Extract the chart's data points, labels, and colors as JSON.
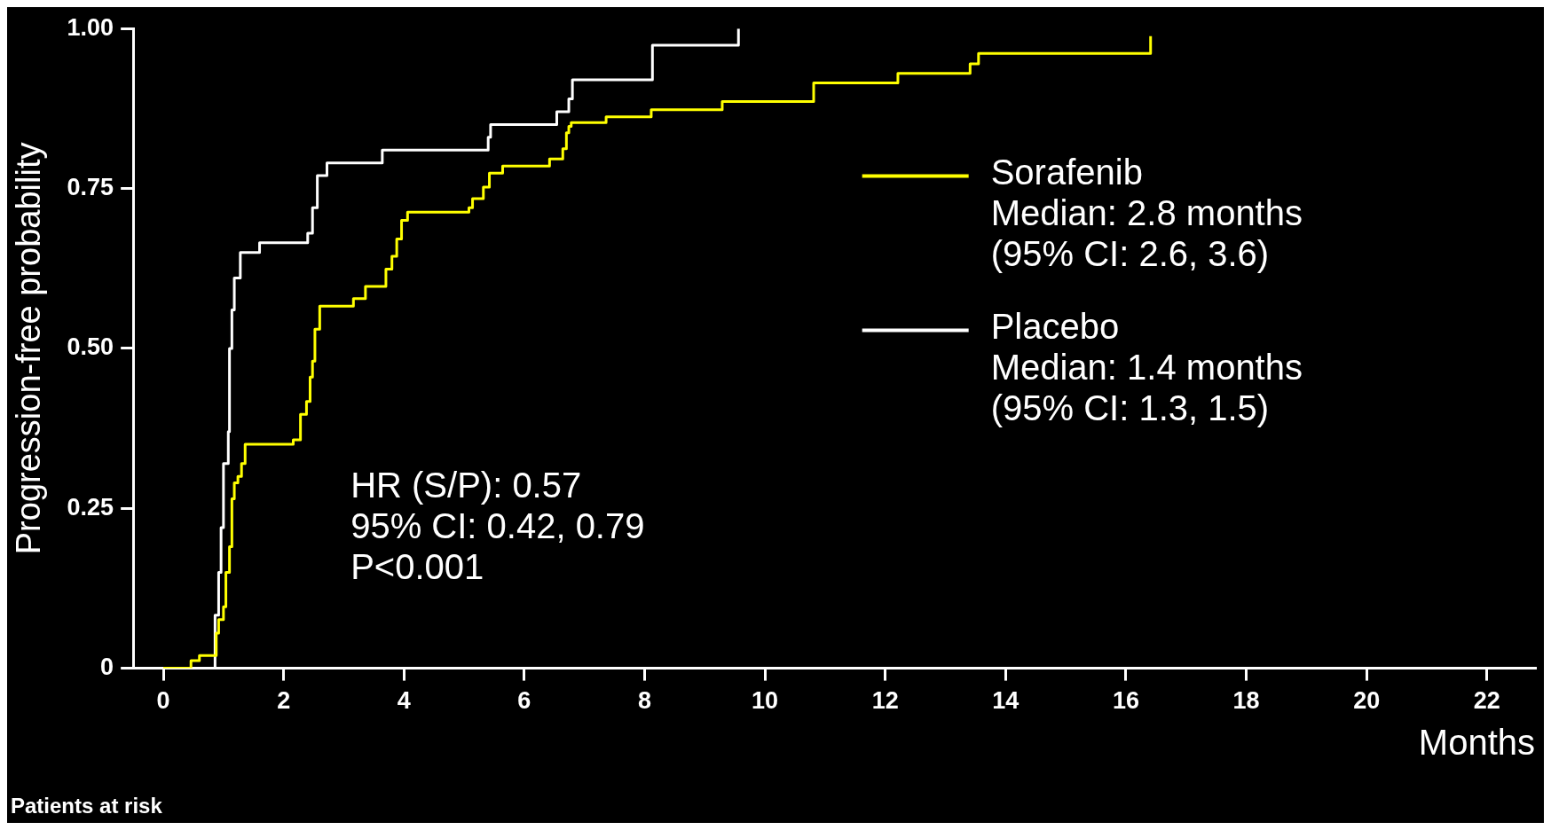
{
  "chart_data": {
    "type": "step",
    "xlabel": "Months",
    "ylabel": "Progression-free probability",
    "xlim": [
      -0.5,
      22.8
    ],
    "ylim": [
      0,
      1
    ],
    "xticks": [
      0,
      2,
      4,
      6,
      8,
      10,
      12,
      14,
      16,
      18,
      20,
      22
    ],
    "yticks": [
      0,
      0.25,
      {
        "value": 0.5,
        "label": "0.50"
      },
      0.75,
      {
        "value": 1,
        "label": "1.00"
      }
    ],
    "grid": false,
    "legend": "right",
    "annotations": [
      "Median: 2.8 months\n(95% CI: 2.6, 3.6)",
      "Median: 1.4 months\n(95% CI: 1.3, 1.5)",
      "HR (S/P): 0.57\n95% CI: 0.42, 0.79\nP<0.001",
      "Patients at risk"
    ],
    "series": [
      {
        "name": "Sorafenib",
        "color": "#ffff00",
        "x": [
          0,
          0.44,
          0.46,
          0.6,
          0.88,
          0.92,
          1.0,
          1.04,
          1.1,
          1.14,
          1.18,
          1.24,
          1.3,
          1.36,
          2.16,
          2.28,
          2.38,
          2.44,
          2.48,
          2.52,
          2.6,
          3.16,
          3.36,
          3.7,
          3.8,
          3.88,
          3.96,
          4.06,
          5.08,
          5.14,
          5.32,
          5.42,
          5.64,
          6.42,
          6.64,
          6.7,
          6.74,
          6.78,
          7.36,
          8.11,
          9.29,
          10.81,
          12.21,
          13.41,
          13.55,
          16.41,
          16.41
        ],
        "values": [
          0,
          0,
          0.012,
          0.02,
          0.055,
          0.076,
          0.096,
          0.15,
          0.19,
          0.265,
          0.29,
          0.3,
          0.32,
          0.35,
          0.357,
          0.397,
          0.417,
          0.455,
          0.48,
          0.53,
          0.566,
          0.578,
          0.597,
          0.624,
          0.644,
          0.671,
          0.7,
          0.713,
          0.72,
          0.734,
          0.752,
          0.774,
          0.785,
          0.796,
          0.812,
          0.837,
          0.847,
          0.853,
          0.862,
          0.873,
          0.886,
          0.915,
          0.93,
          0.945,
          0.961,
          0.961,
          0.988
        ]
      },
      {
        "name": "Placebo",
        "color": "#ffffff",
        "x": [
          0,
          0.84,
          0.86,
          0.92,
          0.96,
          1.0,
          1.08,
          1.1,
          1.14,
          1.18,
          1.28,
          1.6,
          2.4,
          2.48,
          2.56,
          2.72,
          3.64,
          5.4,
          5.44,
          6.54,
          6.74,
          6.8,
          8.13,
          9.56,
          9.56
        ],
        "values": [
          0,
          0,
          0.083,
          0.15,
          0.22,
          0.32,
          0.37,
          0.5,
          0.56,
          0.61,
          0.65,
          0.665,
          0.68,
          0.72,
          0.77,
          0.79,
          0.81,
          0.83,
          0.85,
          0.87,
          0.89,
          0.92,
          0.974,
          0.974,
          1.0
        ]
      }
    ]
  }
}
